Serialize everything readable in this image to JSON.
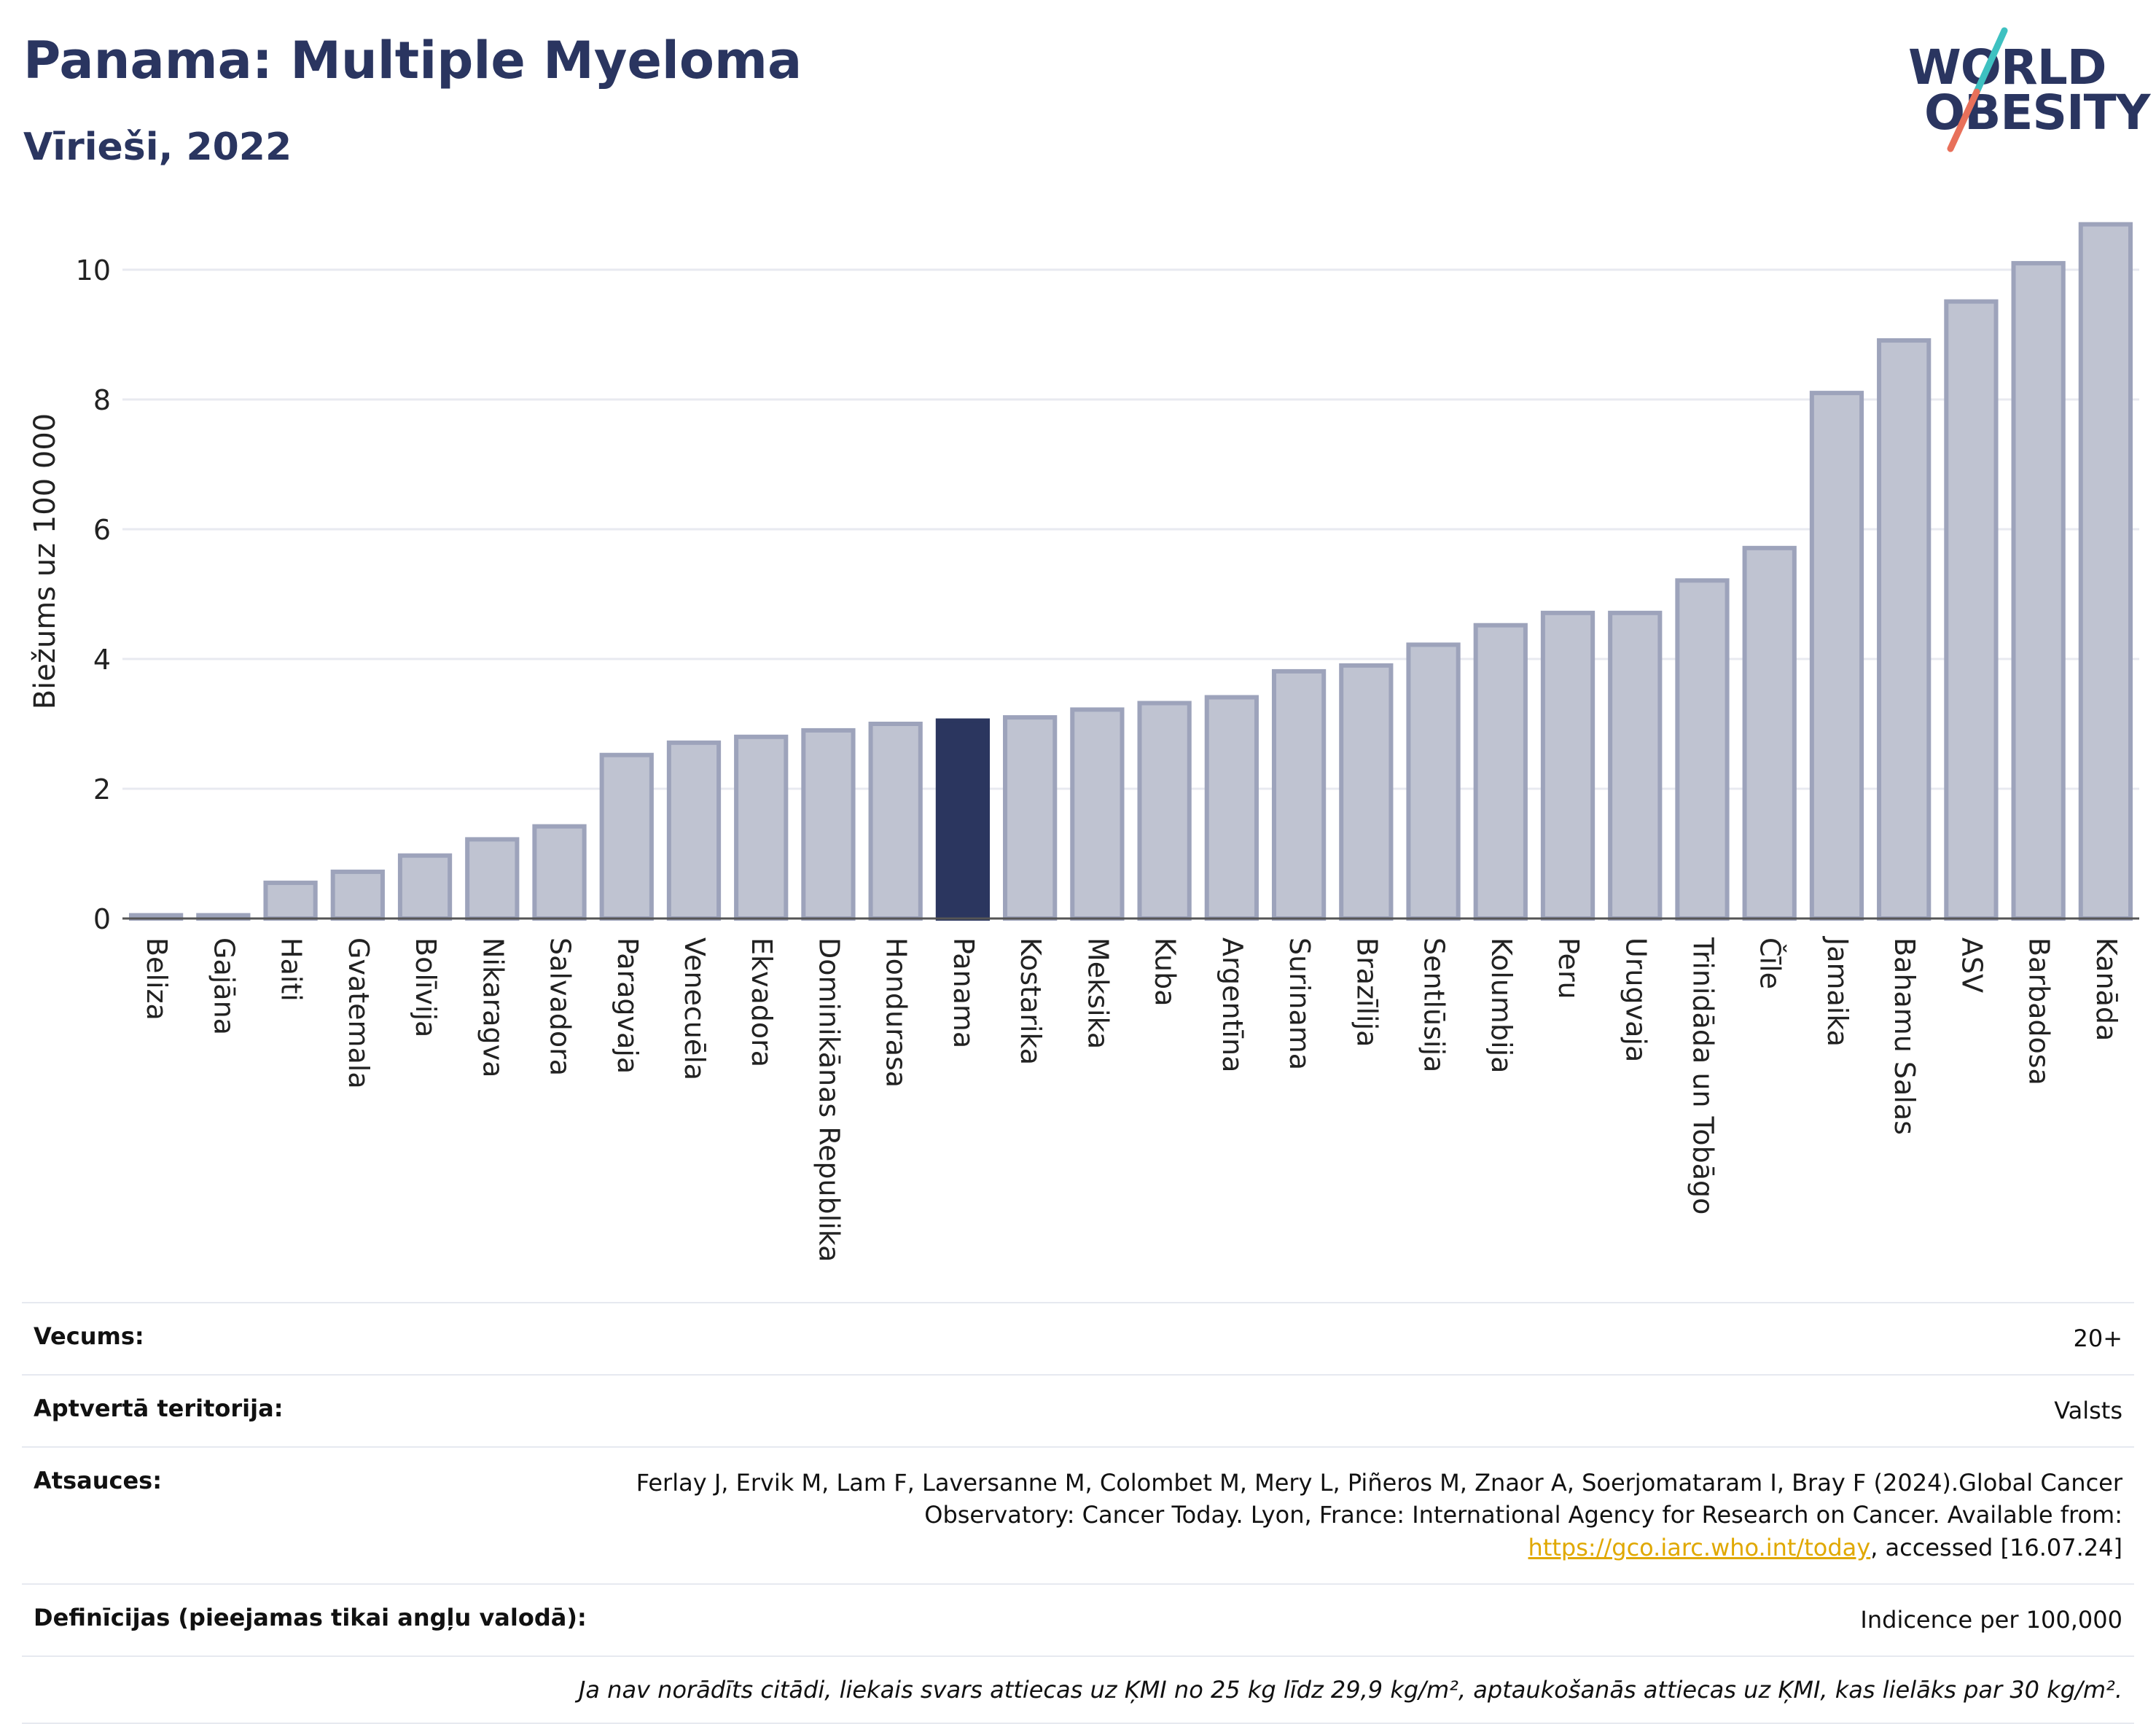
{
  "header": {
    "title": "Panama: Multiple Myeloma",
    "subtitle": "Vīrieši, 2022"
  },
  "logo": {
    "line1": "WORLD",
    "line2": "OBESITY",
    "slash_colors": [
      "#3ec1c1",
      "#e8705a"
    ]
  },
  "chart_data": {
    "type": "bar",
    "ylabel": "Biežums uz 100 000",
    "ylim": [
      0,
      11
    ],
    "yticks": [
      0,
      2,
      4,
      6,
      8,
      10
    ],
    "grid": true,
    "highlight": "Panama",
    "colors": {
      "bar": "#bfc3d1",
      "bar_edge": "#9da3bb",
      "highlight": "#2b365f"
    },
    "categories": [
      "Beliza",
      "Gajāna",
      "Haiti",
      "Gvatemala",
      "Bolīvija",
      "Nikaragva",
      "Salvadora",
      "Paragvaja",
      "Venecuēla",
      "Ekvadora",
      "Dominikānas Republika",
      "Hondurasa",
      "Panama",
      "Kostarika",
      "Meksika",
      "Kuba",
      "Argentīna",
      "Surinama",
      "Brazīlija",
      "Sentlūsija",
      "Kolumbija",
      "Peru",
      "Urugvaja",
      "Trinidāda un Tobāgo",
      "Čīle",
      "Jamaika",
      "Bahamu Salas",
      "ASV",
      "Barbadosa",
      "Kanāda"
    ],
    "values": [
      0.05,
      0.05,
      0.55,
      0.72,
      0.97,
      1.22,
      1.42,
      2.52,
      2.71,
      2.8,
      2.9,
      3.0,
      3.05,
      3.1,
      3.22,
      3.32,
      3.41,
      3.81,
      3.9,
      4.22,
      4.52,
      4.71,
      4.71,
      5.21,
      5.71,
      8.1,
      8.91,
      9.51,
      10.1,
      10.7
    ]
  },
  "info": {
    "age_label": "Vecums:",
    "age_value": "20+",
    "territory_label": "Aptvertā teritorija:",
    "territory_value": "Valsts",
    "refs_label": "Atsauces:",
    "refs_text": "Ferlay J, Ervik M, Lam F, Laversanne M, Colombet M, Mery L, Piñeros M, Znaor A, Soerjomataram I, Bray F (2024).Global Cancer Observatory: Cancer Today. Lyon, France: International Agency for Research on Cancer. Available from: ",
    "refs_link": "https://gco.iarc.who.int/today",
    "refs_tail": ", accessed [16.07.24]",
    "defs_label": "Definīcijas (pieejamas tikai angļu valodā):",
    "defs_value": "Indicence per 100,000",
    "note": "Ja nav norādīts citādi, liekais svars attiecas uz ĶMI no 25 kg līdz 29,9 kg/m², aptaukošanās attiecas uz ĶMI, kas lielāks par 30 kg/m²."
  }
}
